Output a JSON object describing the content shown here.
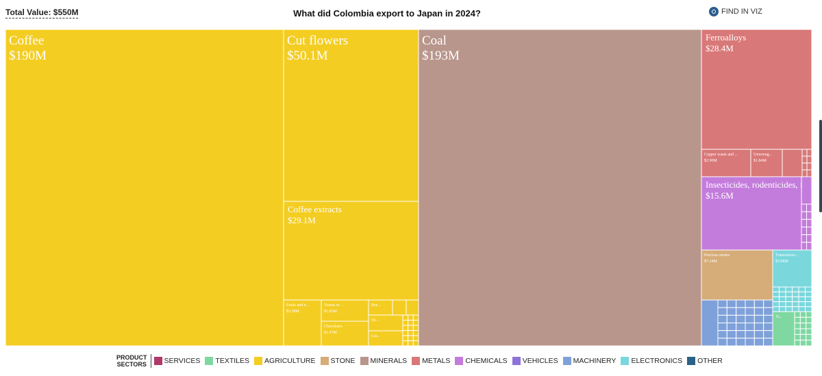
{
  "header": {
    "total_value": "Total Value: $550M",
    "title": "What did Colombia export to Japan in 2024?",
    "find_label": "FIND IN VIZ"
  },
  "colors": {
    "agriculture": "#f4cd22",
    "minerals": "#b9968c",
    "metals": "#d97878",
    "chemicals": "#c47cdc",
    "stone": "#d6ac78",
    "machinery": "#7fa1d9",
    "electronics": "#7ad7dc",
    "textiles": "#7fd8a1",
    "services": "#b0396a",
    "vehicles": "#8f72d8",
    "other": "#2c6287"
  },
  "legend": {
    "title_line1": "PRODUCT",
    "title_line2": "SECTORS",
    "items": [
      {
        "label": "SERVICES",
        "color": "#b0396a"
      },
      {
        "label": "TEXTILES",
        "color": "#7fd8a1"
      },
      {
        "label": "AGRICULTURE",
        "color": "#f4cd22"
      },
      {
        "label": "STONE",
        "color": "#d6ac78"
      },
      {
        "label": "MINERALS",
        "color": "#b9968c"
      },
      {
        "label": "METALS",
        "color": "#d97878"
      },
      {
        "label": "CHEMICALS",
        "color": "#c47cdc"
      },
      {
        "label": "VEHICLES",
        "color": "#8f72d8"
      },
      {
        "label": "MACHINERY",
        "color": "#7fa1d9"
      },
      {
        "label": "ELECTRONICS",
        "color": "#7ad7dc"
      },
      {
        "label": "OTHER",
        "color": "#2c6287"
      }
    ]
  },
  "chart_data": {
    "type": "treemap",
    "title": "What did Colombia export to Japan in 2024?",
    "total": "$550M",
    "products": [
      {
        "name": "Coffee",
        "value_label": "$190M",
        "value": 190,
        "sector": "agriculture"
      },
      {
        "name": "Coal",
        "value_label": "$193M",
        "value": 193,
        "sector": "minerals"
      },
      {
        "name": "Cut flowers",
        "value_label": "$50.1M",
        "value": 50.1,
        "sector": "agriculture"
      },
      {
        "name": "Coffee extracts",
        "value_label": "$29.1M",
        "value": 29.1,
        "sector": "agriculture"
      },
      {
        "name": "Ferroalloys",
        "value_label": "$28.4M",
        "value": 28.4,
        "sector": "metals"
      },
      {
        "name": "Insecticides, rodenticides, fu...",
        "value_label": "$15.6M",
        "value": 15.6,
        "sector": "chemicals"
      },
      {
        "name": "Precious stones",
        "value_label": "$7.34M",
        "value": 7.34,
        "sector": "stone"
      },
      {
        "name": "Transmissio...",
        "value_label": "$3.08M",
        "value": 3.08,
        "sector": "electronics"
      },
      {
        "name": "Fruits and n...",
        "value_label": "$3.58M",
        "value": 3.58,
        "sector": "agriculture"
      },
      {
        "name": "Copper waste and ...",
        "value_label": "$2.90M",
        "value": 2.9,
        "sector": "metals"
      },
      {
        "name": "Tounis or ...",
        "value_label": "$1.83M",
        "value": 1.83,
        "sector": "agriculture"
      },
      {
        "name": "Unwroug...",
        "value_label": "$1.84M",
        "value": 1.84,
        "sector": "metals"
      },
      {
        "name": "Chocolates",
        "value_label": "$1.47M",
        "value": 1.47,
        "sector": "agriculture"
      },
      {
        "name": "Bee...",
        "value_label": "",
        "value": 0.9,
        "sector": "agriculture"
      },
      {
        "name": "He...",
        "value_label": "",
        "value": 0.8,
        "sector": "agriculture"
      },
      {
        "name": "Lia...",
        "value_label": "",
        "value": 0.7,
        "sector": "agriculture"
      },
      {
        "name": "Tr...",
        "value_label": "",
        "value": 0.6,
        "sector": "textiles"
      }
    ]
  }
}
